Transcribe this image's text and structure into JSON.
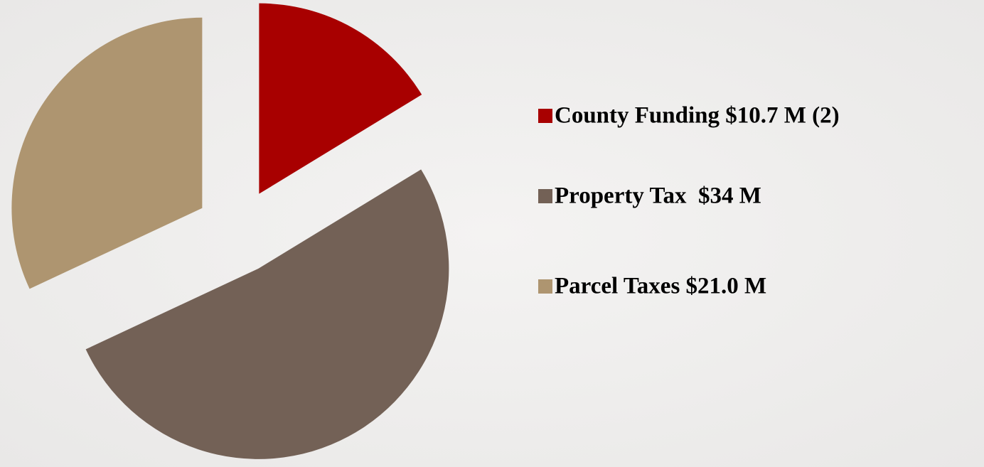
{
  "chart_data": {
    "type": "pie",
    "categories": [
      "County Funding $10.7 M (2)",
      "Property Tax  $34 M",
      "Parcel Taxes $21.0 M"
    ],
    "values": [
      10.7,
      34,
      21.0
    ],
    "colors": [
      "#a80000",
      "#736156",
      "#ae9570"
    ],
    "legend": "right"
  }
}
